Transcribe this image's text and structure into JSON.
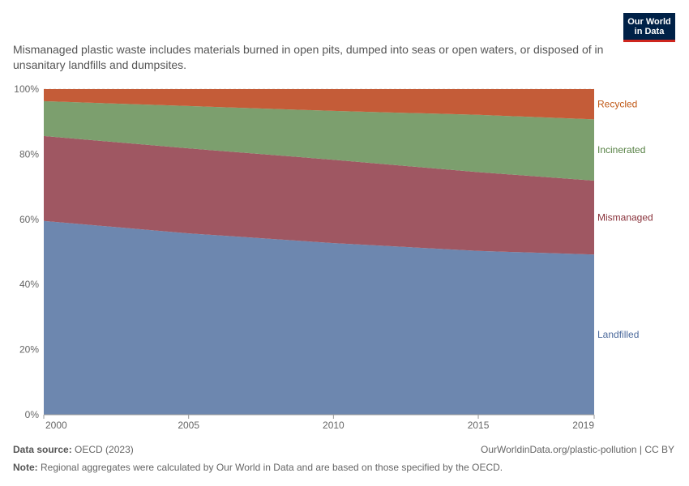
{
  "logo": {
    "line1": "Our World",
    "line2": "in Data"
  },
  "subtitle": "Mismanaged plastic waste includes materials burned in open pits, dumped into seas or open waters, or disposed of in unsanitary landfills and dumpsites.",
  "footer": {
    "source_label": "Data source:",
    "source_value": "OECD (2023)",
    "url": "OurWorldinData.org/plastic-pollution | CC BY",
    "note_label": "Note:",
    "note_value": "Regional aggregates were calculated by Our World in Data and are based on those specified by the OECD."
  },
  "chart_data": {
    "type": "area",
    "stacked": true,
    "x": [
      2000,
      2005,
      2010,
      2015,
      2019
    ],
    "xticks": [
      "2000",
      "2005",
      "2010",
      "2015",
      "2019"
    ],
    "ylim": [
      0,
      100
    ],
    "yticks": [
      "0%",
      "20%",
      "40%",
      "60%",
      "80%",
      "100%"
    ],
    "series": [
      {
        "name": "Landfilled",
        "color": "#6d87af",
        "label_color": "#4c6a9c",
        "values": [
          59.5,
          55.7,
          52.7,
          50.3,
          49.2
        ]
      },
      {
        "name": "Mismanaged",
        "color": "#9f5762",
        "label_color": "#883039",
        "values": [
          26.1,
          26.1,
          25.6,
          24.2,
          22.7
        ]
      },
      {
        "name": "Incinerated",
        "color": "#7c9f6e",
        "label_color": "#578145",
        "values": [
          10.7,
          13.0,
          15.0,
          17.6,
          18.8
        ]
      },
      {
        "name": "Recycled",
        "color": "#c45c38",
        "label_color": "#c05917",
        "values": [
          3.7,
          5.2,
          6.7,
          7.9,
          9.3
        ]
      }
    ],
    "grid": true,
    "legend": "right-inline"
  }
}
